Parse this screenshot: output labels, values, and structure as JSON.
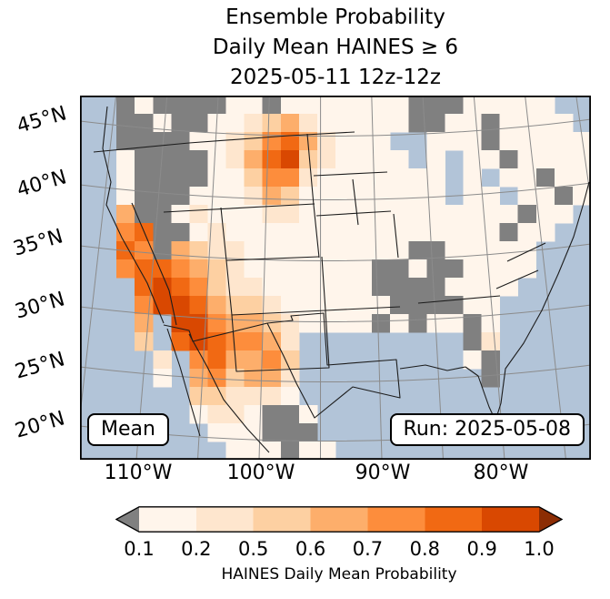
{
  "title": {
    "line1": "Ensemble Probability",
    "line2": "Daily Mean HAINES ≥ 6",
    "line3": "2025-05-11 12z-12z"
  },
  "map": {
    "mean_badge": "Mean",
    "run_badge": "Run: 2025-05-08",
    "ocean_color": "#b2c4d8",
    "masked_color": "#808080"
  },
  "axes": {
    "lat_tick_labels": [
      "45°N",
      "40°N",
      "35°N",
      "30°N",
      "25°N",
      "20°N"
    ],
    "lon_tick_labels": [
      "110°W",
      "100°W",
      "90°W",
      "80°W"
    ]
  },
  "colorbar": {
    "tick_labels": [
      "0.1",
      "0.2",
      "0.5",
      "0.6",
      "0.7",
      "0.8",
      "0.9",
      "1.0"
    ],
    "segment_colors": [
      "#fff5eb",
      "#fee6ce",
      "#fdd0a2",
      "#fdae6b",
      "#fd8d3c",
      "#f16913",
      "#d94801"
    ],
    "under_color": "#808080",
    "over_color": "#8c2d04",
    "label": "HAINES Daily Mean Probability"
  },
  "chart_data": {
    "type": "heatmap",
    "projection": "Lambert Conformal over CONUS, Canada and Mexico",
    "title": "Ensemble Probability",
    "subtitle": "Daily Mean HAINES ≥ 6",
    "valid_period": "2025-05-11 12z-12z",
    "model_run": "2025-05-08",
    "statistic": "Mean",
    "colorbar_label": "HAINES Daily Mean Probability",
    "levels": [
      0.1,
      0.2,
      0.5,
      0.6,
      0.7,
      0.8,
      0.9,
      1.0
    ],
    "under_range": "gray (masked / below 0.1)",
    "x_tick_labels": [
      "110°W",
      "100°W",
      "90°W",
      "80°W"
    ],
    "y_tick_labels": [
      "45°N",
      "40°N",
      "35°N",
      "30°N",
      "25°N",
      "20°N"
    ],
    "legend_position": "horizontal colorbar below map, arrows both ends",
    "notable_regions": [
      {
        "region": "Western Dakotas / northeastern Montana plains",
        "probability": "0.7–1.0"
      },
      {
        "region": "Southern California coast and ranges",
        "probability": "0.7–1.0"
      },
      {
        "region": "Arizona / New Mexico / Sonora–Chihuahua (northern Mexico)",
        "probability": "0.7–1.0"
      },
      {
        "region": "West and south-central Texas into northeast Mexico",
        "probability": "0.5–0.8"
      },
      {
        "region": "Pacific Northwest, Great Basin, upper Midwest and Southeast patches",
        "probability": "masked gray"
      },
      {
        "region": "Eastern US and central Canada",
        "probability": "0.1–0.5"
      }
    ],
    "grid": {
      "cols": 28,
      "rows": 20,
      "cell_codes": {
        ".": "water / outside land",
        "g": "masked gray (< 0.1)",
        "1": "0.1–0.2",
        "2": "0.2–0.5",
        "3": "0.5–0.6",
        "4": "0.6–0.7",
        "5": "0.7–0.8",
        "6": "0.8–0.9",
        "7": "0.9–1.0"
      },
      "palette": {
        "g": "#808080",
        "1": "#fff5eb",
        "2": "#fee6ce",
        "3": "#fdd0a2",
        "4": "#fdae6b",
        "5": "#fd8d3c",
        "6": "#f16913",
        "7": "#d94801"
      },
      "rows_data": [
        "..g1gggg11g1111111ggg11111..",
        "..gg1gg11234211111gg11g1111.",
        "..gggg11235642111..111g11111",
        "..1gggg12467321111.1.11g1111",
        "..1gggg1135521111111.1.11g11",
        "..1ggg11124311111111.11.11g1",
        "..4gg1211122111111111111g11.",
        "..56gg12111111111111111g11..",
        "..65g4322111111111gg11111...",
        "..56654321111111gg1gg1111...",
        "...6765322111111gggg1111....",
        "...57764332111111gggg11.....",
        "...4.77544321111g1g11g1.....",
        "...3.6765542.........g2.....",
        "....2.564453.........1g.....",
        "....1.453442..........g.....",
        "......332221................",
        "......1221gg1...............",
        ".......111ggg...............",
        "........111g11.............."
      ]
    }
  }
}
